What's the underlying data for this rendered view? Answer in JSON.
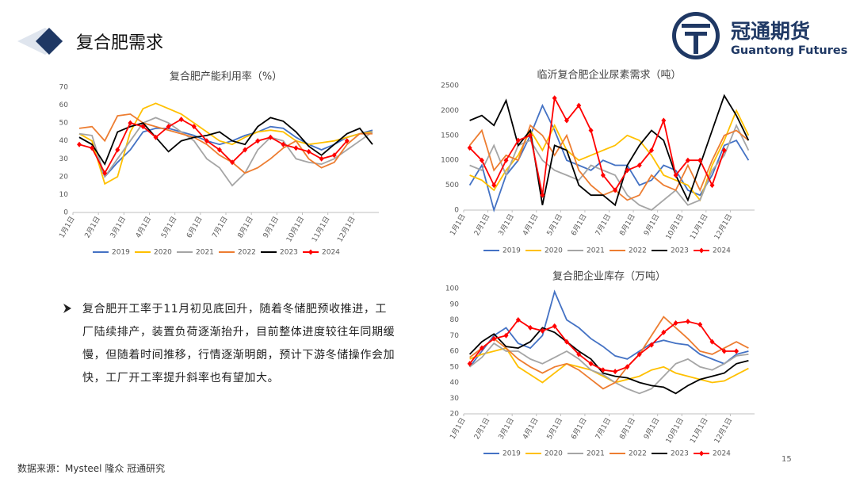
{
  "header": {
    "title": "复合肥需求",
    "logo_cn": "冠通期货",
    "logo_en": "Guantong Futures"
  },
  "body": {
    "bullet": "复合肥开工率于11月初见底回升，随着冬储肥预收推进，工厂陆续排产，装置负荷逐渐抬升，目前整体进度较往年同期缓慢，但随着时间推移，行情逐渐明朗，预计下游冬储操作会加快，工厂开工率提升斜率也有望加大。",
    "source": "数据来源：Mysteel 隆众 冠通研究",
    "page": "15"
  },
  "chart_data": [
    {
      "type": "line",
      "title": "复合肥产能利用率（%）",
      "categories": [
        "1月1日",
        null,
        "2月1日",
        null,
        "3月1日",
        null,
        "4月1日",
        null,
        "5月1日",
        null,
        "6月1日",
        null,
        "7月1日",
        null,
        "8月1日",
        null,
        "9月1日",
        null,
        "10月1日",
        null,
        "11月1日",
        null,
        "12月1日",
        null
      ],
      "ylim": [
        0,
        70
      ],
      "yticks": [
        0,
        10,
        20,
        30,
        40,
        50,
        60,
        70
      ],
      "grid": false,
      "legend": "bottom",
      "series": [
        {
          "name": "2019",
          "color": "#4472c4",
          "values": [
            42,
            38,
            20,
            28,
            35,
            45,
            47,
            47,
            45,
            43,
            40,
            38,
            40,
            43,
            45,
            48,
            47,
            42,
            38,
            35,
            38,
            42,
            44,
            46
          ]
        },
        {
          "name": "2020",
          "color": "#ffc000",
          "values": [
            44,
            40,
            16,
            20,
            45,
            58,
            61,
            58,
            55,
            50,
            45,
            40,
            38,
            42,
            45,
            46,
            45,
            40,
            38,
            39,
            40,
            42,
            44,
            45
          ]
        },
        {
          "name": "2021",
          "color": "#a5a5a5",
          "values": [
            44,
            43,
            20,
            30,
            40,
            50,
            53,
            50,
            45,
            40,
            30,
            25,
            15,
            22,
            35,
            42,
            40,
            30,
            28,
            27,
            30,
            35,
            40,
            45
          ]
        },
        {
          "name": "2022",
          "color": "#ed7d31",
          "values": [
            47,
            48,
            40,
            54,
            55,
            50,
            48,
            46,
            44,
            42,
            38,
            32,
            28,
            22,
            25,
            30,
            36,
            40,
            30,
            25,
            28,
            38,
            44,
            44
          ]
        },
        {
          "name": "2023",
          "color": "#000000",
          "values": [
            42,
            38,
            27,
            45,
            48,
            50,
            42,
            34,
            40,
            42,
            43,
            45,
            40,
            38,
            48,
            53,
            51,
            45,
            37,
            32,
            38,
            44,
            47,
            38
          ]
        },
        {
          "name": "2024",
          "color": "#ff0000",
          "marker": "diamond",
          "values": [
            38,
            36,
            22,
            35,
            50,
            48,
            42,
            48,
            52,
            48,
            40,
            35,
            28,
            35,
            40,
            42,
            38,
            36,
            34,
            30,
            32,
            40,
            null,
            null
          ]
        }
      ]
    },
    {
      "type": "line",
      "title": "临沂复合肥企业尿素需求（吨）",
      "categories": [
        "1月1日",
        null,
        "2月1日",
        null,
        "3月1日",
        null,
        "4月1日",
        null,
        "5月1日",
        null,
        "6月1日",
        null,
        "7月1日",
        null,
        "8月1日",
        null,
        "9月1日",
        null,
        "10月1日",
        null,
        "11月1日",
        null,
        "12月1日",
        null
      ],
      "ylim": [
        0,
        2500
      ],
      "yticks": [
        0,
        500,
        1000,
        1500,
        2000,
        2500
      ],
      "grid": false,
      "legend": "bottom",
      "series": [
        {
          "name": "2019",
          "color": "#4472c4",
          "values": [
            500,
            900,
            0,
            700,
            1000,
            1500,
            2100,
            1600,
            1000,
            900,
            800,
            1000,
            900,
            900,
            500,
            600,
            900,
            800,
            400,
            300,
            700,
            1300,
            1400,
            1000
          ]
        },
        {
          "name": "2020",
          "color": "#ffc000",
          "values": [
            700,
            600,
            400,
            800,
            1100,
            1600,
            1200,
            1700,
            1200,
            1000,
            1100,
            1200,
            1300,
            1500,
            1400,
            1100,
            700,
            600,
            500,
            200,
            900,
            1400,
            2000,
            1500
          ]
        },
        {
          "name": "2021",
          "color": "#a5a5a5",
          "values": [
            900,
            800,
            1300,
            700,
            1300,
            1400,
            1000,
            800,
            700,
            600,
            900,
            800,
            700,
            300,
            100,
            0,
            200,
            400,
            100,
            200,
            800,
            1100,
            1700,
            1200
          ]
        },
        {
          "name": "2022",
          "color": "#ed7d31",
          "values": [
            1300,
            1600,
            800,
            1100,
            1000,
            1700,
            1500,
            1100,
            1500,
            800,
            500,
            300,
            400,
            200,
            300,
            700,
            500,
            400,
            900,
            400,
            1000,
            1500,
            1600,
            1400
          ]
        },
        {
          "name": "2023",
          "color": "#000000",
          "values": [
            1800,
            1900,
            1700,
            2200,
            1300,
            1600,
            100,
            1300,
            1200,
            500,
            300,
            300,
            100,
            900,
            1300,
            1600,
            1400,
            700,
            200,
            900,
            1600,
            2300,
            1900,
            1400
          ]
        },
        {
          "name": "2024",
          "color": "#ff0000",
          "marker": "diamond",
          "values": [
            1250,
            1000,
            500,
            1000,
            1400,
            1500,
            300,
            2250,
            1800,
            2100,
            1600,
            700,
            400,
            800,
            900,
            1200,
            1800,
            700,
            1000,
            1000,
            500,
            1200,
            null,
            null
          ]
        }
      ]
    },
    {
      "type": "line",
      "title": "复合肥企业库存（万吨）",
      "categories": [
        "1月1日",
        null,
        "2月1日",
        null,
        "3月1日",
        null,
        "4月1日",
        null,
        "5月1日",
        null,
        "6月1日",
        null,
        "7月1日",
        null,
        "8月1日",
        null,
        "9月1日",
        null,
        "10月1日",
        null,
        "11月1日",
        null,
        "12月1日",
        null
      ],
      "ylim": [
        20,
        100
      ],
      "yticks": [
        20,
        30,
        40,
        50,
        60,
        70,
        80,
        90,
        100
      ],
      "grid": false,
      "legend": "bottom",
      "series": [
        {
          "name": "2019",
          "color": "#4472c4",
          "values": [
            50,
            60,
            70,
            75,
            65,
            62,
            70,
            98,
            80,
            75,
            68,
            63,
            57,
            55,
            60,
            65,
            67,
            65,
            64,
            58,
            55,
            52,
            58,
            60
          ]
        },
        {
          "name": "2020",
          "color": "#ffc000",
          "values": [
            55,
            58,
            60,
            62,
            50,
            45,
            40,
            46,
            52,
            50,
            48,
            44,
            40,
            42,
            44,
            48,
            50,
            46,
            44,
            42,
            40,
            41,
            45,
            49
          ]
        },
        {
          "name": "2021",
          "color": "#a5a5a5",
          "values": [
            50,
            56,
            65,
            60,
            60,
            55,
            52,
            56,
            60,
            55,
            48,
            45,
            40,
            36,
            33,
            36,
            44,
            52,
            55,
            50,
            48,
            52,
            57,
            58
          ]
        },
        {
          "name": "2022",
          "color": "#ed7d31",
          "values": [
            56,
            62,
            68,
            62,
            55,
            50,
            46,
            50,
            52,
            48,
            42,
            36,
            40,
            50,
            58,
            70,
            82,
            75,
            68,
            60,
            58,
            62,
            66,
            62
          ]
        },
        {
          "name": "2023",
          "color": "#000000",
          "values": [
            58,
            66,
            71,
            63,
            62,
            66,
            75,
            72,
            66,
            60,
            55,
            46,
            44,
            43,
            40,
            38,
            37,
            33,
            38,
            42,
            44,
            46,
            52,
            54
          ]
        },
        {
          "name": "2024",
          "color": "#ff0000",
          "marker": "diamond",
          "values": [
            52,
            62,
            68,
            70,
            80,
            75,
            73,
            76,
            66,
            58,
            52,
            48,
            47,
            50,
            58,
            64,
            72,
            78,
            79,
            77,
            66,
            60,
            60,
            null
          ]
        }
      ]
    }
  ]
}
